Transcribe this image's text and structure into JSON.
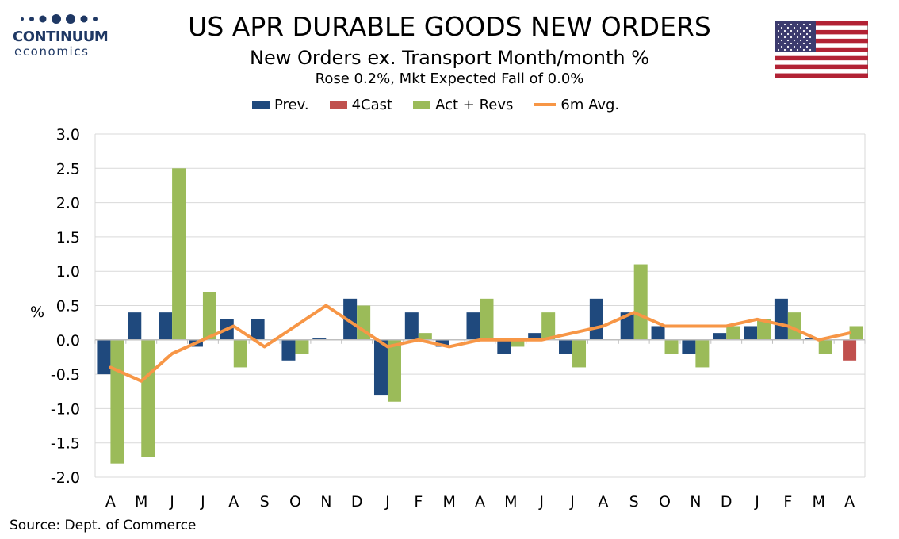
{
  "logo": {
    "name": "CONTINUUM",
    "sub": "economics",
    "color": "#1f3864"
  },
  "header": {
    "title": "US APR DURABLE GOODS NEW ORDERS",
    "subtitle": "New Orders ex. Transport Month/month %",
    "subtitle2": "Rose 0.2%, Mkt Expected Fall of 0.0%"
  },
  "flag": {
    "icon": "us-flag-icon"
  },
  "source": "Source: Dept. of Commerce",
  "chart_data": {
    "type": "bar",
    "ylabel": "%",
    "ylim": [
      -2.0,
      3.0
    ],
    "ytick_step": 0.5,
    "ytick_labels": [
      "3.0",
      "2.5",
      "2.0",
      "1.5",
      "1.0",
      "0.5",
      "0.0",
      "-0.5",
      "-1.0",
      "-1.5",
      "-2.0"
    ],
    "grid": true,
    "legend_position": "top",
    "categories": [
      "A",
      "M",
      "J",
      "J",
      "A",
      "S",
      "O",
      "N",
      "D",
      "J",
      "F",
      "M",
      "A",
      "M",
      "J",
      "J",
      "A",
      "S",
      "O",
      "N",
      "D",
      "J",
      "F",
      "M",
      "A"
    ],
    "series": [
      {
        "name": "Prev.",
        "kind": "bar",
        "color": "#1f497d",
        "values": [
          -0.5,
          0.4,
          0.4,
          -0.1,
          0.3,
          0.3,
          -0.3,
          0.02,
          0.6,
          -0.8,
          0.4,
          -0.1,
          0.4,
          -0.2,
          0.1,
          -0.2,
          0.6,
          0.4,
          0.2,
          -0.2,
          0.1,
          0.2,
          0.6,
          0.02,
          null
        ]
      },
      {
        "name": "4Cast",
        "kind": "bar",
        "color": "#c0504d",
        "values": [
          null,
          null,
          null,
          null,
          null,
          null,
          null,
          null,
          null,
          null,
          null,
          null,
          null,
          null,
          null,
          null,
          null,
          null,
          null,
          null,
          null,
          null,
          null,
          null,
          -0.3
        ]
      },
      {
        "name": "Act + Revs",
        "kind": "bar",
        "color": "#9bbb59",
        "values": [
          -1.8,
          -1.7,
          2.5,
          0.7,
          -0.4,
          null,
          -0.2,
          null,
          0.5,
          -0.9,
          0.1,
          null,
          0.6,
          -0.1,
          0.4,
          -0.4,
          null,
          1.1,
          -0.2,
          -0.4,
          0.2,
          0.3,
          0.4,
          -0.2,
          0.2
        ]
      },
      {
        "name": "6m Avg.",
        "kind": "line",
        "color": "#f79646",
        "values": [
          -0.4,
          -0.6,
          -0.2,
          0.0,
          0.2,
          -0.1,
          0.2,
          0.5,
          0.2,
          -0.1,
          0.0,
          -0.1,
          0.0,
          0.0,
          0.0,
          0.1,
          0.2,
          0.4,
          0.2,
          0.2,
          0.2,
          0.3,
          0.2,
          0.0,
          0.1
        ]
      }
    ]
  }
}
